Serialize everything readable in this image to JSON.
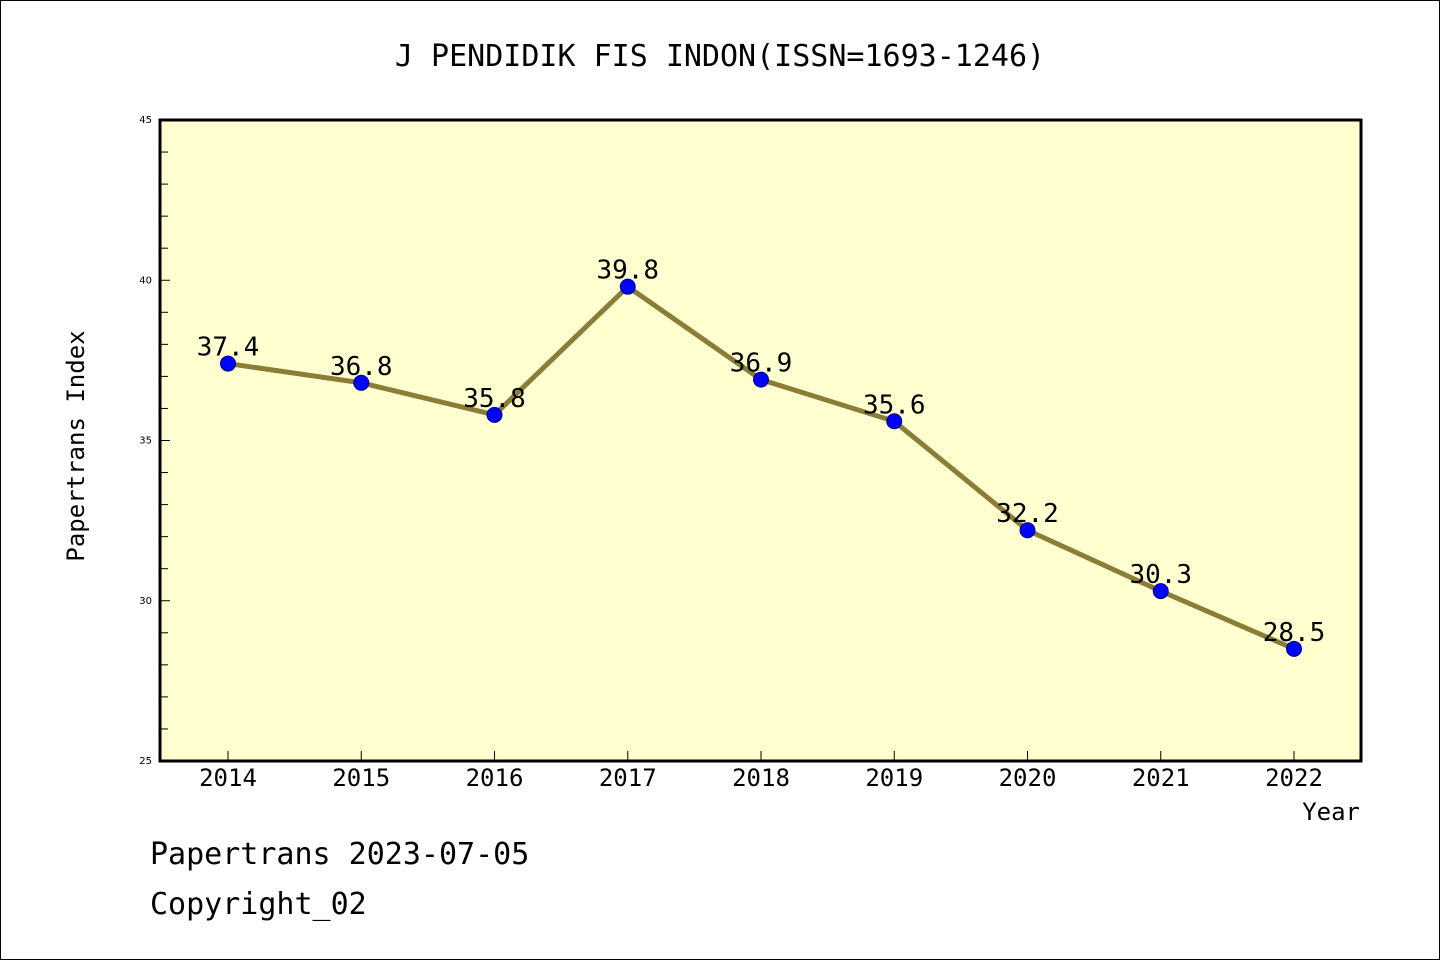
{
  "chart_data": {
    "type": "line",
    "title": "J PENDIDIK FIS INDON(ISSN=1693-1246)",
    "xlabel": "Year",
    "ylabel": "Papertrans Index",
    "x": [
      "2014",
      "2015",
      "2016",
      "2017",
      "2018",
      "2019",
      "2020",
      "2021",
      "2022"
    ],
    "values": [
      37.4,
      36.8,
      35.8,
      39.8,
      36.9,
      35.6,
      32.2,
      30.3,
      28.5
    ],
    "data_labels": [
      "37.4",
      "36.8",
      "35.8",
      "39.8",
      "36.9",
      "35.6",
      "32.2",
      "30.3",
      "28.5"
    ],
    "ylim": [
      25,
      45
    ],
    "yticks": [
      25,
      30,
      35,
      40,
      45
    ],
    "grid": false,
    "colors": {
      "plot_background": "#ffffd0",
      "line": "#8b7d35",
      "marker": "#0000ff",
      "marker_edge": "#000080"
    }
  },
  "footer": {
    "date_line": "Papertrans 2023-07-05",
    "copyright_line": "Copyright_02"
  }
}
